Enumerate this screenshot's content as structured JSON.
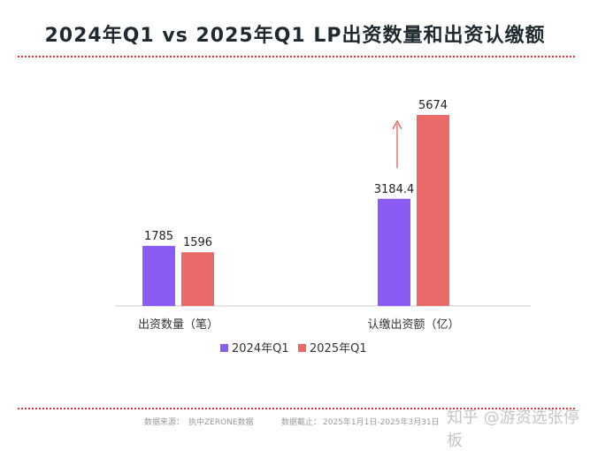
{
  "title": "2024年Q1 vs 2025年Q1 LP出资数量和出资认缴额",
  "chart_data": {
    "type": "bar",
    "title": "2024年Q1 vs 2025年Q1 LP出资数量和出资认缴额",
    "categories": [
      "出资数量（笔）",
      "认缴出资额（亿）"
    ],
    "series": [
      {
        "name": "2024年Q1",
        "values": [
          1785,
          3184.4
        ],
        "labels": [
          "1785",
          "3184.4"
        ],
        "color": "#8a5cf5"
      },
      {
        "name": "2025年Q1",
        "values": [
          1596,
          5674
        ],
        "labels": [
          "1596",
          "5674"
        ],
        "color": "#ea6a6a"
      }
    ],
    "ylim": [
      0,
      6000
    ],
    "grid": false,
    "legend": "bottom",
    "annotation": "up-arrow on 认缴出资额"
  },
  "footer": {
    "source_label": "数据来源：",
    "source": "执中ZERONE数据",
    "cutoff_label": "数据截止：",
    "cutoff": "2025年1月1日-2025年3月31日"
  },
  "watermark": "知乎 @游资选张停板"
}
